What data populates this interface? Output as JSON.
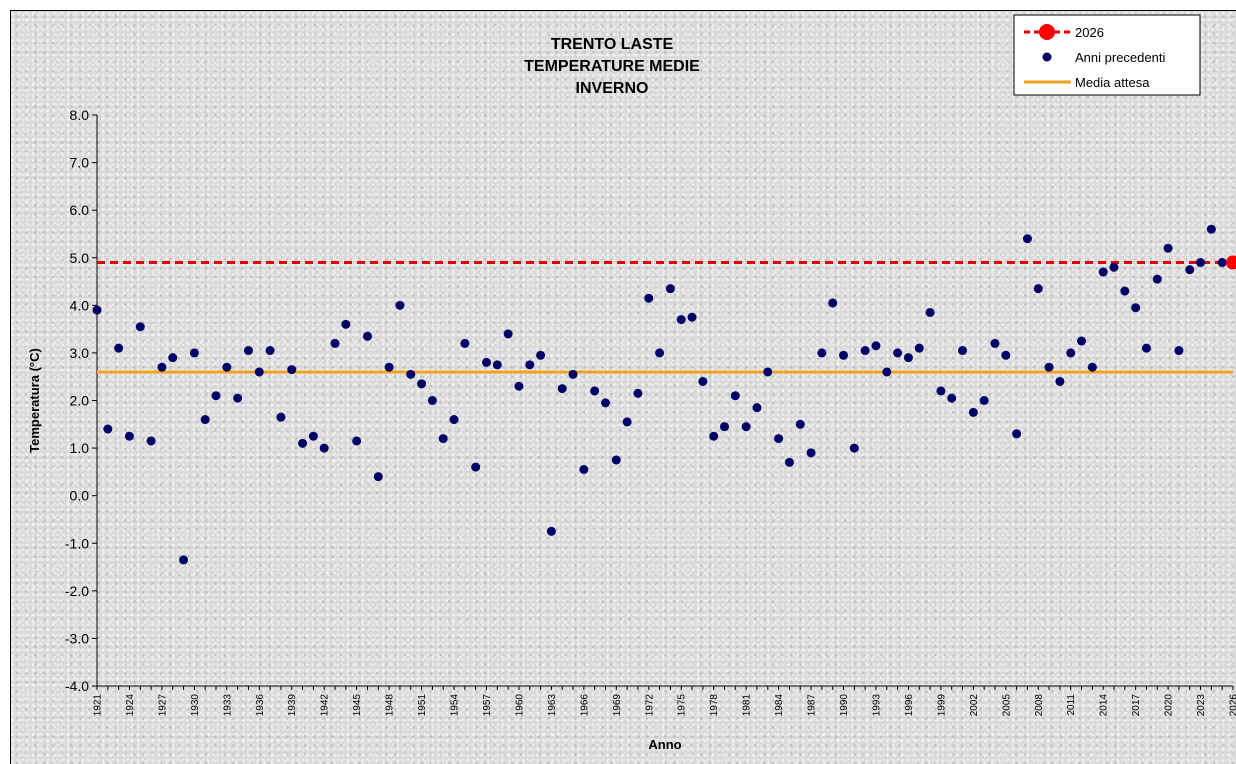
{
  "chart_data": {
    "type": "scatter",
    "title_lines": [
      "TRENTO LASTE",
      "TEMPERATURE MEDIE",
      "INVERNO"
    ],
    "xlabel": "Anno",
    "ylabel": "Temperatura (°C)",
    "xlim": [
      1921,
      2026
    ],
    "ylim": [
      -4.0,
      8.0
    ],
    "x_ticks": [
      "1921",
      "1924",
      "1927",
      "1930",
      "1933",
      "1936",
      "1939",
      "1942",
      "1945",
      "1948",
      "1951",
      "1954",
      "1957",
      "1960",
      "1963",
      "1966",
      "1969",
      "1972",
      "1975",
      "1978",
      "1981",
      "1984",
      "1987",
      "1990",
      "1993",
      "1996",
      "1999",
      "2002",
      "2005",
      "2008",
      "2011",
      "2014",
      "2017",
      "2020",
      "2023",
      "2026"
    ],
    "y_ticks": [
      "-4.0",
      "-3.0",
      "-2.0",
      "-1.0",
      "0.0",
      "1.0",
      "2.0",
      "3.0",
      "4.0",
      "5.0",
      "6.0",
      "7.0",
      "8.0"
    ],
    "grid": false,
    "legend_position": "top-right",
    "series": [
      {
        "name": "2026",
        "color": "#ff0000",
        "line_style": "dashed",
        "x": [
          2026
        ],
        "y": [
          4.9
        ]
      },
      {
        "name": "Anni precedenti",
        "color": "#000066",
        "x": [
          1921,
          1922,
          1923,
          1924,
          1925,
          1926,
          1927,
          1928,
          1929,
          1930,
          1931,
          1932,
          1933,
          1934,
          1935,
          1936,
          1937,
          1938,
          1939,
          1940,
          1941,
          1942,
          1943,
          1944,
          1945,
          1946,
          1947,
          1948,
          1949,
          1950,
          1951,
          1952,
          1953,
          1954,
          1955,
          1956,
          1957,
          1958,
          1959,
          1960,
          1961,
          1962,
          1963,
          1964,
          1965,
          1966,
          1967,
          1968,
          1969,
          1970,
          1971,
          1972,
          1973,
          1974,
          1975,
          1976,
          1977,
          1978,
          1979,
          1980,
          1981,
          1982,
          1983,
          1984,
          1985,
          1986,
          1987,
          1988,
          1989,
          1990,
          1991,
          1992,
          1993,
          1994,
          1995,
          1996,
          1997,
          1998,
          1999,
          2000,
          2001,
          2002,
          2003,
          2004,
          2005,
          2006,
          2007,
          2008,
          2009,
          2010,
          2011,
          2012,
          2013,
          2014,
          2015,
          2016,
          2017,
          2018,
          2019,
          2020,
          2021,
          2022,
          2023,
          2024,
          2025
        ],
        "y": [
          3.9,
          1.4,
          3.1,
          1.25,
          3.55,
          1.15,
          2.7,
          2.9,
          -1.35,
          3.0,
          1.6,
          2.1,
          2.7,
          2.05,
          3.05,
          2.6,
          3.05,
          1.65,
          2.65,
          1.1,
          1.25,
          1.0,
          3.2,
          3.6,
          1.15,
          3.35,
          0.4,
          2.7,
          4.0,
          2.55,
          2.35,
          2.0,
          1.2,
          1.6,
          3.2,
          0.6,
          2.8,
          2.75,
          3.4,
          2.3,
          2.75,
          2.95,
          -0.75,
          2.25,
          2.55,
          0.55,
          2.2,
          1.95,
          0.75,
          1.55,
          2.15,
          4.15,
          3.0,
          4.35,
          3.7,
          3.75,
          2.4,
          1.25,
          1.45,
          2.1,
          1.45,
          1.85,
          2.6,
          1.2,
          0.7,
          1.5,
          0.9,
          3.0,
          4.05,
          2.95,
          1.0,
          3.05,
          3.15,
          2.6,
          3.0,
          2.9,
          3.1,
          3.85,
          2.2,
          2.05,
          3.05,
          1.75,
          2.0,
          3.2,
          2.95,
          1.3,
          5.4,
          4.35,
          2.7,
          2.4,
          3.0,
          3.25,
          2.7,
          4.7,
          4.8,
          4.3,
          3.95,
          3.1,
          4.55,
          5.2,
          3.05,
          4.75,
          4.9,
          5.6,
          4.9
        ]
      },
      {
        "name": "Media attesa",
        "color": "#f4a11d",
        "line_style": "solid",
        "y": 2.6
      }
    ]
  }
}
